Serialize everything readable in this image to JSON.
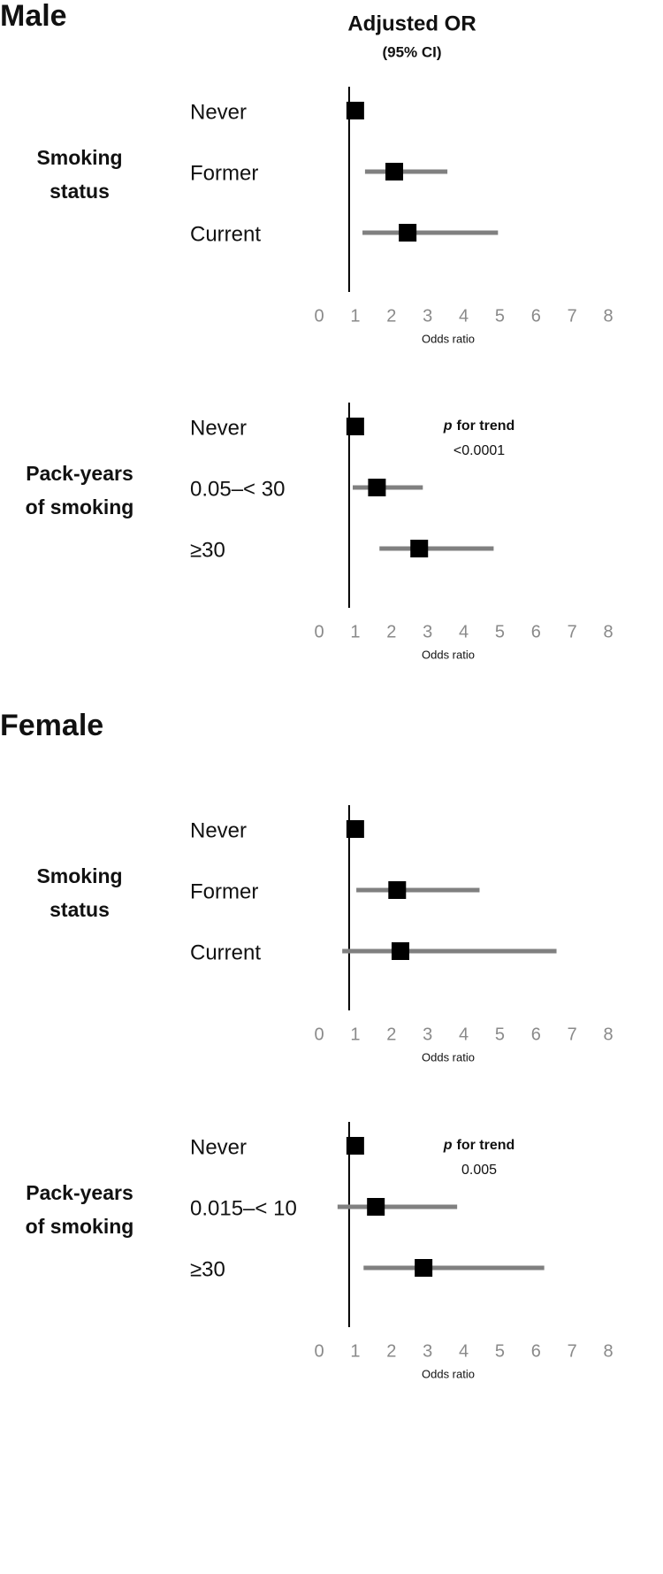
{
  "chart_data": [
    {
      "type": "forest",
      "title": "Male",
      "header": "Adjusted OR",
      "subheader": "(95% CI)",
      "group_label": [
        "Smoking",
        "status"
      ],
      "categories": [
        "Never",
        "Former",
        "Current"
      ],
      "values": [
        1.0,
        2.08,
        2.45
      ],
      "lower": [
        null,
        1.27,
        1.2
      ],
      "upper": [
        null,
        3.55,
        4.95
      ],
      "reference_line": 0.83,
      "xlim": [
        0,
        8
      ],
      "xticks": [
        0,
        1,
        2,
        3,
        4,
        5,
        6,
        7,
        8
      ],
      "xlabel": "Odds ratio",
      "ci_color": "#808080",
      "color": "#000000"
    },
    {
      "type": "forest",
      "group_label": [
        "Pack-years",
        "of smoking"
      ],
      "categories": [
        "Never",
        "0.05–< 30",
        "≥30"
      ],
      "values": [
        1.0,
        1.6,
        2.77
      ],
      "lower": [
        null,
        0.93,
        1.67
      ],
      "upper": [
        null,
        2.87,
        4.83
      ],
      "annotation_italic": "p",
      "annotation_bold": "for trend",
      "annotation_value": "<0.0001",
      "reference_line": 0.83,
      "xlim": [
        0,
        8
      ],
      "xticks": [
        0,
        1,
        2,
        3,
        4,
        5,
        6,
        7,
        8
      ],
      "xlabel": "Odds ratio",
      "ci_color": "#808080",
      "color": "#000000"
    },
    {
      "type": "forest",
      "title": "Female",
      "group_label": [
        "Smoking",
        "status"
      ],
      "categories": [
        "Never",
        "Former",
        "Current"
      ],
      "values": [
        1.0,
        2.16,
        2.25
      ],
      "lower": [
        null,
        1.03,
        0.64
      ],
      "upper": [
        null,
        4.44,
        6.57
      ],
      "reference_line": 0.83,
      "xlim": [
        0,
        8
      ],
      "xticks": [
        0,
        1,
        2,
        3,
        4,
        5,
        6,
        7,
        8
      ],
      "xlabel": "Odds ratio",
      "ci_color": "#808080",
      "color": "#000000"
    },
    {
      "type": "forest",
      "group_label": [
        "Pack-years",
        "of smoking"
      ],
      "categories": [
        "Never",
        "0.015–< 10",
        "≥30"
      ],
      "values": [
        1.0,
        1.57,
        2.89
      ],
      "lower": [
        null,
        0.51,
        1.23
      ],
      "upper": [
        null,
        3.82,
        6.23
      ],
      "annotation_italic": "p",
      "annotation_bold": "for trend",
      "annotation_value": "0.005",
      "reference_line": 0.83,
      "xlim": [
        0,
        8
      ],
      "xticks": [
        0,
        1,
        2,
        3,
        4,
        5,
        6,
        7,
        8
      ],
      "xlabel": "Odds ratio",
      "ci_color": "#808080",
      "color": "#000000"
    }
  ]
}
